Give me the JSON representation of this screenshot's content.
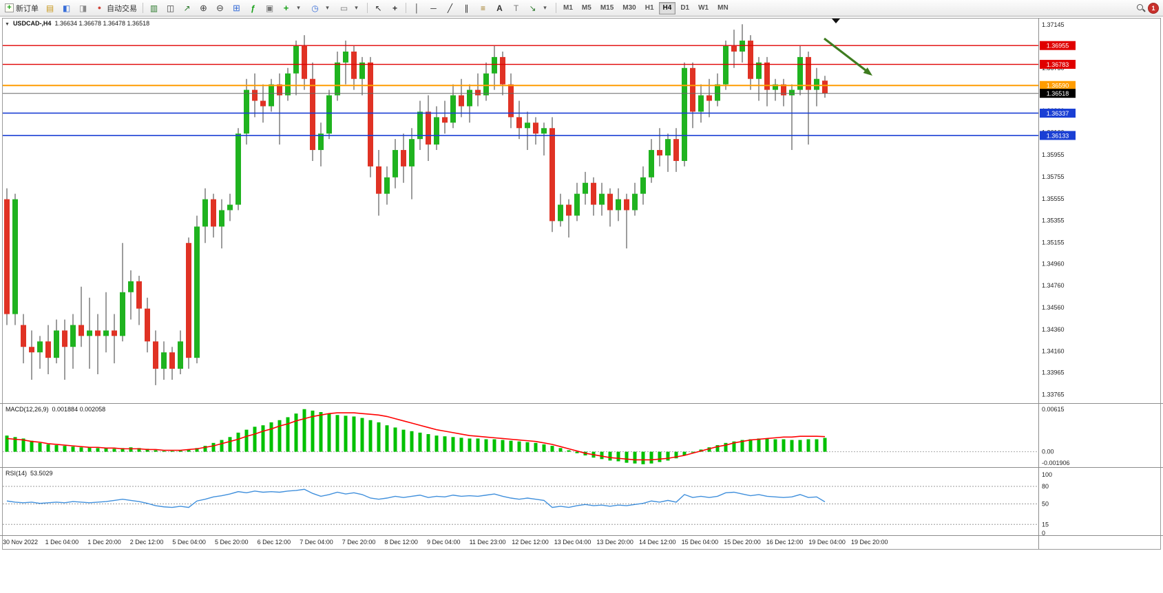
{
  "toolbar": {
    "new_order_label": "新订单",
    "auto_trading_label": "自动交易",
    "timeframes": [
      "M1",
      "M5",
      "M15",
      "M30",
      "H1",
      "H4",
      "D1",
      "W1",
      "MN"
    ],
    "active_timeframe": "H4",
    "notification_count": "1"
  },
  "chart": {
    "symbol": "USDCAD-,H4",
    "ohlc": "1.36634 1.36678 1.36478 1.36518",
    "price_ticks": [
      "1.37145",
      "1.36945",
      "1.36750",
      "1.36555",
      "1.36360",
      "1.36160",
      "1.35955",
      "1.35755",
      "1.35555",
      "1.35355",
      "1.35155",
      "1.34960",
      "1.34760",
      "1.34560",
      "1.34360",
      "1.34160",
      "1.33965",
      "1.33765"
    ],
    "hlines": [
      {
        "price": 1.36955,
        "label": "1.36955",
        "color": "#e00000",
        "badge": "#e00000",
        "width": 1.4
      },
      {
        "price": 1.36783,
        "label": "1.36783",
        "color": "#e00000",
        "badge": "#e00000",
        "width": 1.4
      },
      {
        "price": 1.3659,
        "label": "1.36590",
        "color": "#ff9c00",
        "badge": "#ff9c00",
        "width": 2
      },
      {
        "price": 1.36337,
        "label": "1.36337",
        "color": "#1a3fd4",
        "badge": "#1a3fd4",
        "width": 1.6
      },
      {
        "price": 1.36133,
        "label": "1.36133",
        "color": "#1a3fd4",
        "badge": "#1a3fd4",
        "width": 1.6
      }
    ],
    "bid": {
      "price": 1.36518,
      "label": "1.36518",
      "line_color": "#666666",
      "badge": "#000000"
    },
    "time_labels": [
      "30 Nov 2022",
      "1 Dec 04:00",
      "1 Dec 20:00",
      "2 Dec 12:00",
      "5 Dec 04:00",
      "5 Dec 20:00",
      "6 Dec 12:00",
      "7 Dec 04:00",
      "7 Dec 20:00",
      "8 Dec 12:00",
      "9 Dec 04:00",
      "11 Dec 23:00",
      "12 Dec 12:00",
      "13 Dec 04:00",
      "13 Dec 20:00",
      "14 Dec 12:00",
      "15 Dec 04:00",
      "15 Dec 20:00",
      "16 Dec 12:00",
      "19 Dec 04:00",
      "19 Dec 20:00"
    ],
    "colors": {
      "up": "#1fb31f",
      "down": "#e03224",
      "wick": "#3a3a3a",
      "macd_hist": "#00c000",
      "macd_signal": "#ff0000",
      "rsi_line": "#3f8fdc",
      "arrow": "#3e7c1f"
    }
  },
  "macd": {
    "label": "MACD(12,26,9)",
    "values": "0.001884 0.002058",
    "axis": [
      "0.00615",
      "0.00",
      "-0.001906"
    ]
  },
  "rsi": {
    "label": "RSI(14)",
    "value": "53.5029",
    "axis": [
      "100",
      "80",
      "50",
      "15",
      "0"
    ],
    "levels": [
      80,
      50,
      15
    ]
  },
  "chart_data": {
    "type": "candlestick",
    "symbol": "USDCAD",
    "timeframe": "H4",
    "price_axis_range": {
      "top": 1.37145,
      "bottom": 1.33765
    },
    "candles": [
      [
        1.3555,
        1.3565,
        1.344,
        1.345
      ],
      [
        1.345,
        1.356,
        1.344,
        1.3555
      ],
      [
        1.344,
        1.345,
        1.3405,
        1.342
      ],
      [
        1.342,
        1.3435,
        1.339,
        1.3415
      ],
      [
        1.3415,
        1.343,
        1.34,
        1.3425
      ],
      [
        1.3425,
        1.344,
        1.3395,
        1.341
      ],
      [
        1.341,
        1.3445,
        1.3405,
        1.3435
      ],
      [
        1.3435,
        1.3445,
        1.339,
        1.342
      ],
      [
        1.342,
        1.345,
        1.34,
        1.344
      ],
      [
        1.344,
        1.3475,
        1.342,
        1.343
      ],
      [
        1.343,
        1.3465,
        1.34,
        1.3435
      ],
      [
        1.3435,
        1.345,
        1.3395,
        1.343
      ],
      [
        1.343,
        1.347,
        1.3415,
        1.3435
      ],
      [
        1.3435,
        1.345,
        1.3405,
        1.343
      ],
      [
        1.343,
        1.3515,
        1.3425,
        1.347
      ],
      [
        1.347,
        1.349,
        1.3445,
        1.348
      ],
      [
        1.348,
        1.3485,
        1.344,
        1.3455
      ],
      [
        1.3455,
        1.3465,
        1.3415,
        1.3425
      ],
      [
        1.3425,
        1.3435,
        1.3385,
        1.34
      ],
      [
        1.34,
        1.3425,
        1.339,
        1.3415
      ],
      [
        1.3415,
        1.342,
        1.339,
        1.34
      ],
      [
        1.34,
        1.3435,
        1.3395,
        1.3425
      ],
      [
        1.3515,
        1.352,
        1.34,
        1.341
      ],
      [
        1.341,
        1.354,
        1.3405,
        1.353
      ],
      [
        1.353,
        1.3565,
        1.3515,
        1.3555
      ],
      [
        1.3555,
        1.356,
        1.352,
        1.353
      ],
      [
        1.353,
        1.3555,
        1.351,
        1.3545
      ],
      [
        1.3545,
        1.356,
        1.3535,
        1.355
      ],
      [
        1.355,
        1.362,
        1.3545,
        1.3615
      ],
      [
        1.3615,
        1.3665,
        1.3605,
        1.3655
      ],
      [
        1.3655,
        1.367,
        1.363,
        1.3645
      ],
      [
        1.3645,
        1.366,
        1.3625,
        1.364
      ],
      [
        1.364,
        1.3665,
        1.3635,
        1.366
      ],
      [
        1.366,
        1.367,
        1.3605,
        1.365
      ],
      [
        1.365,
        1.3675,
        1.3645,
        1.367
      ],
      [
        1.367,
        1.37,
        1.365,
        1.3695
      ],
      [
        1.3695,
        1.3705,
        1.3655,
        1.3665
      ],
      [
        1.3665,
        1.368,
        1.359,
        1.36
      ],
      [
        1.36,
        1.3625,
        1.3585,
        1.3615
      ],
      [
        1.3615,
        1.3655,
        1.361,
        1.365
      ],
      [
        1.365,
        1.369,
        1.3645,
        1.368
      ],
      [
        1.368,
        1.37,
        1.366,
        1.369
      ],
      [
        1.369,
        1.3695,
        1.3655,
        1.3665
      ],
      [
        1.3665,
        1.3685,
        1.365,
        1.368
      ],
      [
        1.368,
        1.3685,
        1.3575,
        1.3585
      ],
      [
        1.3585,
        1.36,
        1.354,
        1.356
      ],
      [
        1.356,
        1.3585,
        1.355,
        1.3575
      ],
      [
        1.3575,
        1.361,
        1.3565,
        1.36
      ],
      [
        1.36,
        1.3615,
        1.357,
        1.3585
      ],
      [
        1.3585,
        1.362,
        1.3555,
        1.361
      ],
      [
        1.361,
        1.3645,
        1.36,
        1.3635
      ],
      [
        1.3635,
        1.365,
        1.359,
        1.3605
      ],
      [
        1.3605,
        1.364,
        1.36,
        1.363
      ],
      [
        1.363,
        1.3645,
        1.3615,
        1.3625
      ],
      [
        1.3625,
        1.366,
        1.362,
        1.365
      ],
      [
        1.365,
        1.3665,
        1.363,
        1.364
      ],
      [
        1.364,
        1.366,
        1.3625,
        1.3655
      ],
      [
        1.3655,
        1.367,
        1.364,
        1.365
      ],
      [
        1.365,
        1.368,
        1.3645,
        1.367
      ],
      [
        1.367,
        1.3695,
        1.3655,
        1.3685
      ],
      [
        1.3685,
        1.369,
        1.365,
        1.366
      ],
      [
        1.366,
        1.367,
        1.362,
        1.363
      ],
      [
        1.363,
        1.3645,
        1.361,
        1.362
      ],
      [
        1.362,
        1.3635,
        1.36,
        1.3625
      ],
      [
        1.3625,
        1.363,
        1.3605,
        1.3615
      ],
      [
        1.3615,
        1.3625,
        1.3595,
        1.362
      ],
      [
        1.362,
        1.363,
        1.3525,
        1.3535
      ],
      [
        1.3535,
        1.356,
        1.353,
        1.355
      ],
      [
        1.355,
        1.3555,
        1.352,
        1.354
      ],
      [
        1.354,
        1.357,
        1.3535,
        1.356
      ],
      [
        1.356,
        1.358,
        1.355,
        1.357
      ],
      [
        1.357,
        1.3575,
        1.354,
        1.355
      ],
      [
        1.355,
        1.357,
        1.354,
        1.356
      ],
      [
        1.356,
        1.3565,
        1.353,
        1.3545
      ],
      [
        1.3545,
        1.3565,
        1.3535,
        1.3555
      ],
      [
        1.3555,
        1.356,
        1.351,
        1.3545
      ],
      [
        1.3545,
        1.357,
        1.354,
        1.356
      ],
      [
        1.356,
        1.3585,
        1.355,
        1.3575
      ],
      [
        1.3575,
        1.361,
        1.357,
        1.36
      ],
      [
        1.36,
        1.362,
        1.3585,
        1.3595
      ],
      [
        1.3595,
        1.3615,
        1.358,
        1.361
      ],
      [
        1.361,
        1.362,
        1.358,
        1.359
      ],
      [
        1.359,
        1.368,
        1.3585,
        1.3675
      ],
      [
        1.3675,
        1.368,
        1.362,
        1.3635
      ],
      [
        1.3635,
        1.366,
        1.3625,
        1.365
      ],
      [
        1.365,
        1.3665,
        1.363,
        1.3645
      ],
      [
        1.3645,
        1.367,
        1.364,
        1.366
      ],
      [
        1.366,
        1.37,
        1.3655,
        1.3695
      ],
      [
        1.3695,
        1.371,
        1.3675,
        1.369
      ],
      [
        1.369,
        1.3715,
        1.368,
        1.37
      ],
      [
        1.37,
        1.3705,
        1.3655,
        1.3665
      ],
      [
        1.3665,
        1.3685,
        1.3645,
        1.368
      ],
      [
        1.368,
        1.3685,
        1.364,
        1.3655
      ],
      [
        1.3655,
        1.3665,
        1.3645,
        1.366
      ],
      [
        1.366,
        1.3665,
        1.364,
        1.365
      ],
      [
        1.365,
        1.366,
        1.36,
        1.3655
      ],
      [
        1.3655,
        1.3695,
        1.365,
        1.3685
      ],
      [
        1.3685,
        1.369,
        1.3605,
        1.3655
      ],
      [
        1.3655,
        1.3675,
        1.364,
        1.3665
      ],
      [
        1.36634,
        1.36678,
        1.36478,
        1.36518
      ]
    ],
    "macd": {
      "range": [
        -0.001906,
        0.00615
      ],
      "histogram": [
        0.0022,
        0.002,
        0.0018,
        0.0015,
        0.0012,
        0.001,
        0.0009,
        0.0008,
        0.0007,
        0.0006,
        0.0006,
        0.0005,
        0.0005,
        0.0004,
        0.0005,
        0.0006,
        0.0005,
        0.0004,
        0.0002,
        0.0001,
        0.0001,
        0.0002,
        0.0003,
        0.0005,
        0.0008,
        0.0012,
        0.0016,
        0.002,
        0.0026,
        0.003,
        0.0034,
        0.0036,
        0.004,
        0.0043,
        0.0047,
        0.0052,
        0.0058,
        0.0056,
        0.0054,
        0.0052,
        0.005,
        0.0049,
        0.0048,
        0.0046,
        0.0043,
        0.004,
        0.0036,
        0.0033,
        0.003,
        0.0028,
        0.0026,
        0.0024,
        0.0022,
        0.0021,
        0.002,
        0.0019,
        0.0018,
        0.0018,
        0.0017,
        0.0017,
        0.0016,
        0.0015,
        0.0014,
        0.0013,
        0.0012,
        0.001,
        0.0008,
        0.0005,
        0.0002,
        -0.0002,
        -0.0005,
        -0.0008,
        -0.001,
        -0.0012,
        -0.0013,
        -0.0015,
        -0.0016,
        -0.0017,
        -0.0016,
        -0.0014,
        -0.0012,
        -0.0009,
        -0.0005,
        -0.0001,
        0.0003,
        0.0006,
        0.0009,
        0.0012,
        0.0014,
        0.0016,
        0.0017,
        0.0018,
        0.0018,
        0.0017,
        0.0017,
        0.0016,
        0.0016,
        0.0017,
        0.0017,
        0.001884
      ],
      "signal": [
        0.0018,
        0.0017,
        0.0016,
        0.0014,
        0.0013,
        0.0011,
        0.001,
        0.0009,
        0.0008,
        0.0007,
        0.0006,
        0.0006,
        0.0005,
        0.0005,
        0.0004,
        0.0004,
        0.0004,
        0.0003,
        0.0003,
        0.0002,
        0.0002,
        0.0002,
        0.0003,
        0.0004,
        0.0006,
        0.0008,
        0.0011,
        0.0014,
        0.0017,
        0.0021,
        0.0024,
        0.0028,
        0.0031,
        0.0035,
        0.0038,
        0.0042,
        0.0045,
        0.0048,
        0.005,
        0.0052,
        0.0053,
        0.0053,
        0.0053,
        0.0052,
        0.0051,
        0.005,
        0.0048,
        0.0045,
        0.0042,
        0.0039,
        0.0036,
        0.0033,
        0.003,
        0.0028,
        0.0026,
        0.0024,
        0.0022,
        0.0021,
        0.002,
        0.0019,
        0.0018,
        0.0017,
        0.0016,
        0.0015,
        0.0014,
        0.0012,
        0.001,
        0.0007,
        0.0004,
        0.0001,
        -0.0002,
        -0.0004,
        -0.0006,
        -0.0008,
        -0.0009,
        -0.001,
        -0.0011,
        -0.0011,
        -0.0011,
        -0.001,
        -0.0009,
        -0.0007,
        -0.0005,
        -0.0002,
        0.0001,
        0.0004,
        0.0007,
        0.0009,
        0.0012,
        0.0014,
        0.0016,
        0.0017,
        0.0018,
        0.0019,
        0.002,
        0.002,
        0.0021,
        0.0021,
        0.0021,
        0.002058
      ]
    },
    "rsi": {
      "range": [
        0,
        100
      ],
      "series": [
        55,
        53,
        52,
        53,
        51,
        52,
        53,
        52,
        54,
        53,
        52,
        53,
        54,
        56,
        58,
        56,
        54,
        51,
        47,
        45,
        44,
        46,
        44,
        55,
        58,
        62,
        64,
        67,
        71,
        69,
        72,
        70,
        71,
        70,
        72,
        73,
        75,
        68,
        63,
        66,
        70,
        67,
        69,
        66,
        60,
        58,
        60,
        63,
        61,
        63,
        65,
        61,
        63,
        62,
        65,
        63,
        64,
        63,
        65,
        67,
        63,
        60,
        58,
        60,
        58,
        56,
        44,
        46,
        44,
        47,
        49,
        47,
        48,
        46,
        48,
        47,
        49,
        51,
        55,
        53,
        56,
        53,
        66,
        61,
        63,
        61,
        63,
        69,
        70,
        67,
        64,
        66,
        63,
        62,
        61,
        62,
        66,
        61,
        62,
        53.5
      ]
    }
  }
}
